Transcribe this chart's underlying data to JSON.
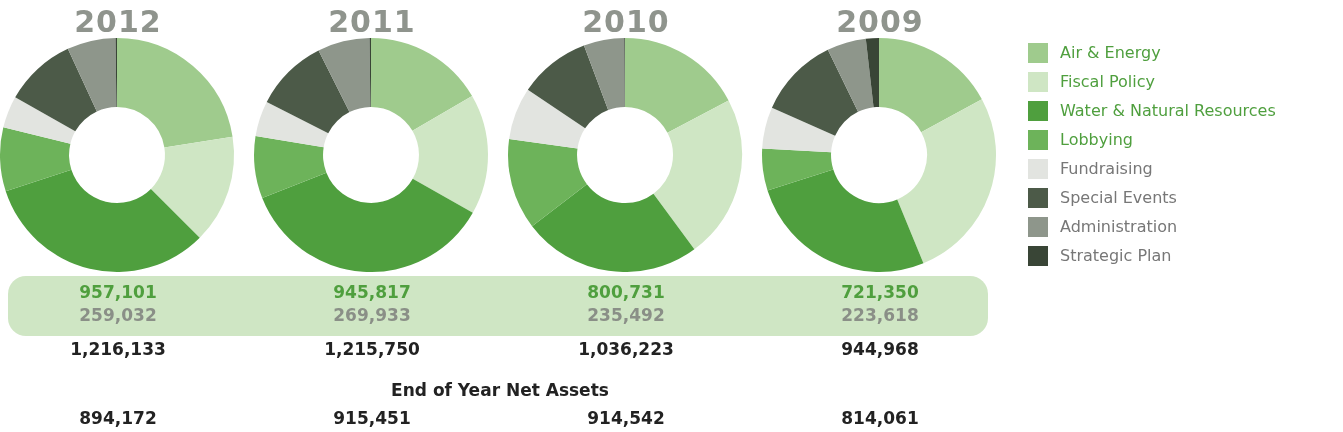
{
  "chart_data": [
    {
      "type": "donut",
      "title": "2012",
      "categories": [
        null,
        null,
        null,
        null,
        null,
        null,
        null,
        null
      ],
      "values": [
        22.5,
        15,
        32.5,
        8.8,
        4.4,
        9.9,
        6.7,
        0.2
      ],
      "colors": [
        "#9fcb8d",
        "#cfe6c4",
        "#4f9f3e",
        "#6db35a",
        "#e2e4e0",
        "#4c5a48",
        "#8e968b",
        "#394536"
      ],
      "annotations": [
        "957,101",
        "259,032",
        "1,216,133",
        "894,172"
      ],
      "legend": false
    },
    {
      "type": "donut",
      "title": "2011",
      "categories": [
        null,
        null,
        null,
        null,
        null,
        null,
        null,
        null
      ],
      "values": [
        16.6,
        16.6,
        35.8,
        8.6,
        4.9,
        10.1,
        7.2,
        0.2
      ],
      "colors": [
        "#9fcb8d",
        "#cfe6c4",
        "#4f9f3e",
        "#6db35a",
        "#e2e4e0",
        "#4c5a48",
        "#8e968b",
        "#394536"
      ],
      "annotations": [
        "945,817",
        "269,933",
        "1,215,750",
        "915,451"
      ],
      "legend": false
    },
    {
      "type": "donut",
      "title": "2010",
      "categories": [
        null,
        null,
        null,
        null,
        null,
        null,
        null,
        null
      ],
      "values": [
        17.3,
        22.6,
        24.7,
        12.6,
        7.2,
        9.9,
        5.6,
        0.1
      ],
      "colors": [
        "#9fcb8d",
        "#cfe6c4",
        "#4f9f3e",
        "#6db35a",
        "#e2e4e0",
        "#4c5a48",
        "#8e968b",
        "#394536"
      ],
      "annotations": [
        "800,731",
        "235,492",
        "1,036,223",
        "914,542"
      ],
      "legend": false
    },
    {
      "type": "donut",
      "title": "2009",
      "categories": [
        "Air & Energy",
        "Fiscal Policy",
        "Water & Natural Resources",
        "Lobbying",
        "Fundraising",
        "Special Events",
        "Administration",
        "Strategic Plan"
      ],
      "values": [
        17.1,
        26.7,
        26.3,
        5.8,
        5.7,
        11.2,
        5.4,
        1.8
      ],
      "colors": [
        "#9fcb8d",
        "#cfe6c4",
        "#4f9f3e",
        "#6db35a",
        "#e2e4e0",
        "#4c5a48",
        "#8e968b",
        "#394536"
      ],
      "annotations": [
        "721,350",
        "223,618",
        "944,968",
        "814,061"
      ],
      "legend": "right"
    },
    {
      "type": "other",
      "title": "End of Year Net Assets"
    }
  ]
}
